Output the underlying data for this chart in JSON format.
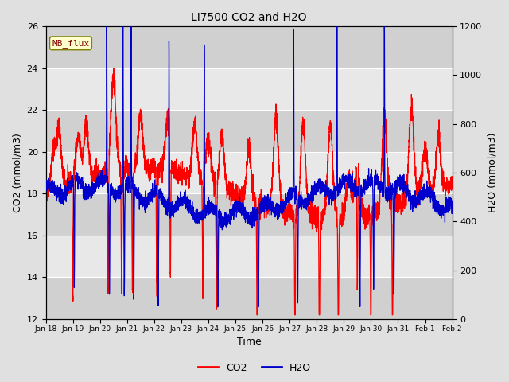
{
  "title": "LI7500 CO2 and H2O",
  "xlabel": "Time",
  "ylabel_left": "CO2 (mmol/m3)",
  "ylabel_right": "H2O (mmol/m3)",
  "ylim_left": [
    12,
    26
  ],
  "ylim_right": [
    0,
    1200
  ],
  "yticks_left": [
    12,
    14,
    16,
    18,
    20,
    22,
    24,
    26
  ],
  "yticks_right": [
    0,
    200,
    400,
    600,
    800,
    1000,
    1200
  ],
  "co2_color": "#ff0000",
  "h2o_color": "#0000cc",
  "bg_color": "#e0e0e0",
  "stripe_dark": "#d0d0d0",
  "stripe_light": "#e8e8e8",
  "annotation_text": "MB_flux",
  "legend_co2": "CO2",
  "legend_h2o": "H2O",
  "n_points": 3840,
  "seed": 42
}
